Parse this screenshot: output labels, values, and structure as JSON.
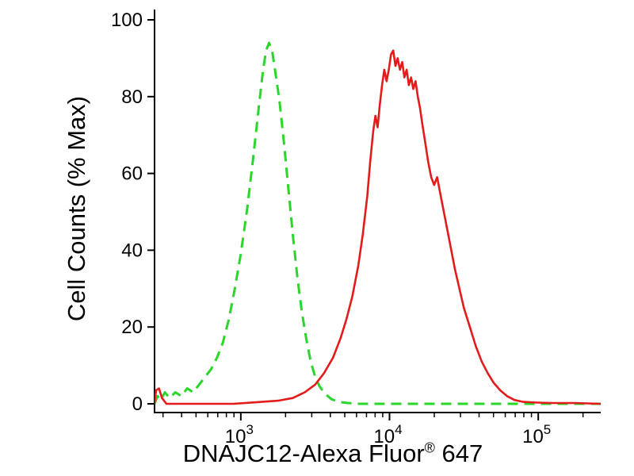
{
  "chart_data": {
    "type": "line",
    "chart_kind": "flow-cytometry-histogram",
    "title": "",
    "ylabel": "Cell Counts (% Max)",
    "xlabel_main": "DNAJC12-Alexa Fluor",
    "xlabel_sup": "®",
    "xlabel_suffix": " 647",
    "xlabel_full": "DNAJC12-Alexa Fluor® 647",
    "x_scale": "log10",
    "x_log_range": [
      2.42,
      5.42
    ],
    "ylim": [
      0,
      100
    ],
    "y_ticks": [
      0,
      20,
      40,
      60,
      80,
      100
    ],
    "x_tick_exponents": [
      3,
      4,
      5
    ],
    "grid": false,
    "legend": "none",
    "background_color": "#ffffff",
    "axis_color": "#000000",
    "series": [
      {
        "name": "green-dashed-curve",
        "color": "#2bd62b",
        "line_style": "dashed",
        "peak_x_log10": 3.19,
        "peak_y": 94,
        "points_log10x_y": [
          [
            2.42,
            0
          ],
          [
            2.44,
            2
          ],
          [
            2.46,
            1
          ],
          [
            2.49,
            3
          ],
          [
            2.52,
            1.5
          ],
          [
            2.56,
            3
          ],
          [
            2.6,
            2
          ],
          [
            2.64,
            4
          ],
          [
            2.68,
            3
          ],
          [
            2.72,
            5
          ],
          [
            2.76,
            7
          ],
          [
            2.8,
            9
          ],
          [
            2.84,
            12
          ],
          [
            2.88,
            16
          ],
          [
            2.92,
            22
          ],
          [
            2.96,
            30
          ],
          [
            3.0,
            39
          ],
          [
            3.04,
            50
          ],
          [
            3.08,
            63
          ],
          [
            3.12,
            77
          ],
          [
            3.15,
            87
          ],
          [
            3.17,
            92
          ],
          [
            3.19,
            94
          ],
          [
            3.21,
            92
          ],
          [
            3.23,
            87
          ],
          [
            3.26,
            79
          ],
          [
            3.29,
            68
          ],
          [
            3.32,
            56
          ],
          [
            3.35,
            44
          ],
          [
            3.38,
            33
          ],
          [
            3.41,
            24
          ],
          [
            3.44,
            17
          ],
          [
            3.47,
            11
          ],
          [
            3.5,
            7
          ],
          [
            3.53,
            4.5
          ],
          [
            3.57,
            2.5
          ],
          [
            3.61,
            1.2
          ],
          [
            3.66,
            0.5
          ],
          [
            3.72,
            0.2
          ],
          [
            3.8,
            0
          ],
          [
            4.2,
            0
          ],
          [
            4.6,
            0
          ],
          [
            5.0,
            0
          ],
          [
            5.42,
            0
          ]
        ]
      },
      {
        "name": "red-solid-curve",
        "color": "#e31b1b",
        "line_style": "solid",
        "peak_x_log10": 4.03,
        "peak_y": 92,
        "points_log10x_y": [
          [
            2.42,
            0
          ],
          [
            2.43,
            3.5
          ],
          [
            2.45,
            4
          ],
          [
            2.47,
            1.5
          ],
          [
            2.5,
            0
          ],
          [
            2.7,
            0
          ],
          [
            2.95,
            0
          ],
          [
            3.1,
            0.4
          ],
          [
            3.25,
            0.8
          ],
          [
            3.35,
            1.5
          ],
          [
            3.43,
            3
          ],
          [
            3.5,
            5
          ],
          [
            3.56,
            8
          ],
          [
            3.62,
            12
          ],
          [
            3.67,
            17
          ],
          [
            3.71,
            22
          ],
          [
            3.75,
            28
          ],
          [
            3.79,
            36
          ],
          [
            3.82,
            44
          ],
          [
            3.85,
            54
          ],
          [
            3.87,
            63
          ],
          [
            3.89,
            71
          ],
          [
            3.905,
            75
          ],
          [
            3.92,
            72
          ],
          [
            3.935,
            78
          ],
          [
            3.95,
            83
          ],
          [
            3.965,
            87
          ],
          [
            3.98,
            84
          ],
          [
            3.995,
            87
          ],
          [
            4.01,
            91
          ],
          [
            4.025,
            92
          ],
          [
            4.04,
            88
          ],
          [
            4.055,
            90
          ],
          [
            4.07,
            87
          ],
          [
            4.085,
            89
          ],
          [
            4.1,
            85
          ],
          [
            4.115,
            87
          ],
          [
            4.13,
            83
          ],
          [
            4.145,
            85
          ],
          [
            4.16,
            82
          ],
          [
            4.175,
            84
          ],
          [
            4.19,
            80
          ],
          [
            4.205,
            77
          ],
          [
            4.22,
            73
          ],
          [
            4.24,
            68
          ],
          [
            4.26,
            63
          ],
          [
            4.28,
            59
          ],
          [
            4.3,
            57
          ],
          [
            4.32,
            59
          ],
          [
            4.34,
            55
          ],
          [
            4.36,
            51
          ],
          [
            4.385,
            46
          ],
          [
            4.41,
            41
          ],
          [
            4.44,
            35
          ],
          [
            4.47,
            30
          ],
          [
            4.5,
            25
          ],
          [
            4.54,
            20
          ],
          [
            4.58,
            15
          ],
          [
            4.62,
            11
          ],
          [
            4.66,
            8
          ],
          [
            4.7,
            5.5
          ],
          [
            4.745,
            3.5
          ],
          [
            4.79,
            2
          ],
          [
            4.84,
            1
          ],
          [
            4.9,
            0.5
          ],
          [
            5.0,
            0.3
          ],
          [
            5.1,
            0.2
          ],
          [
            5.25,
            0.2
          ],
          [
            5.42,
            0
          ]
        ]
      }
    ]
  }
}
